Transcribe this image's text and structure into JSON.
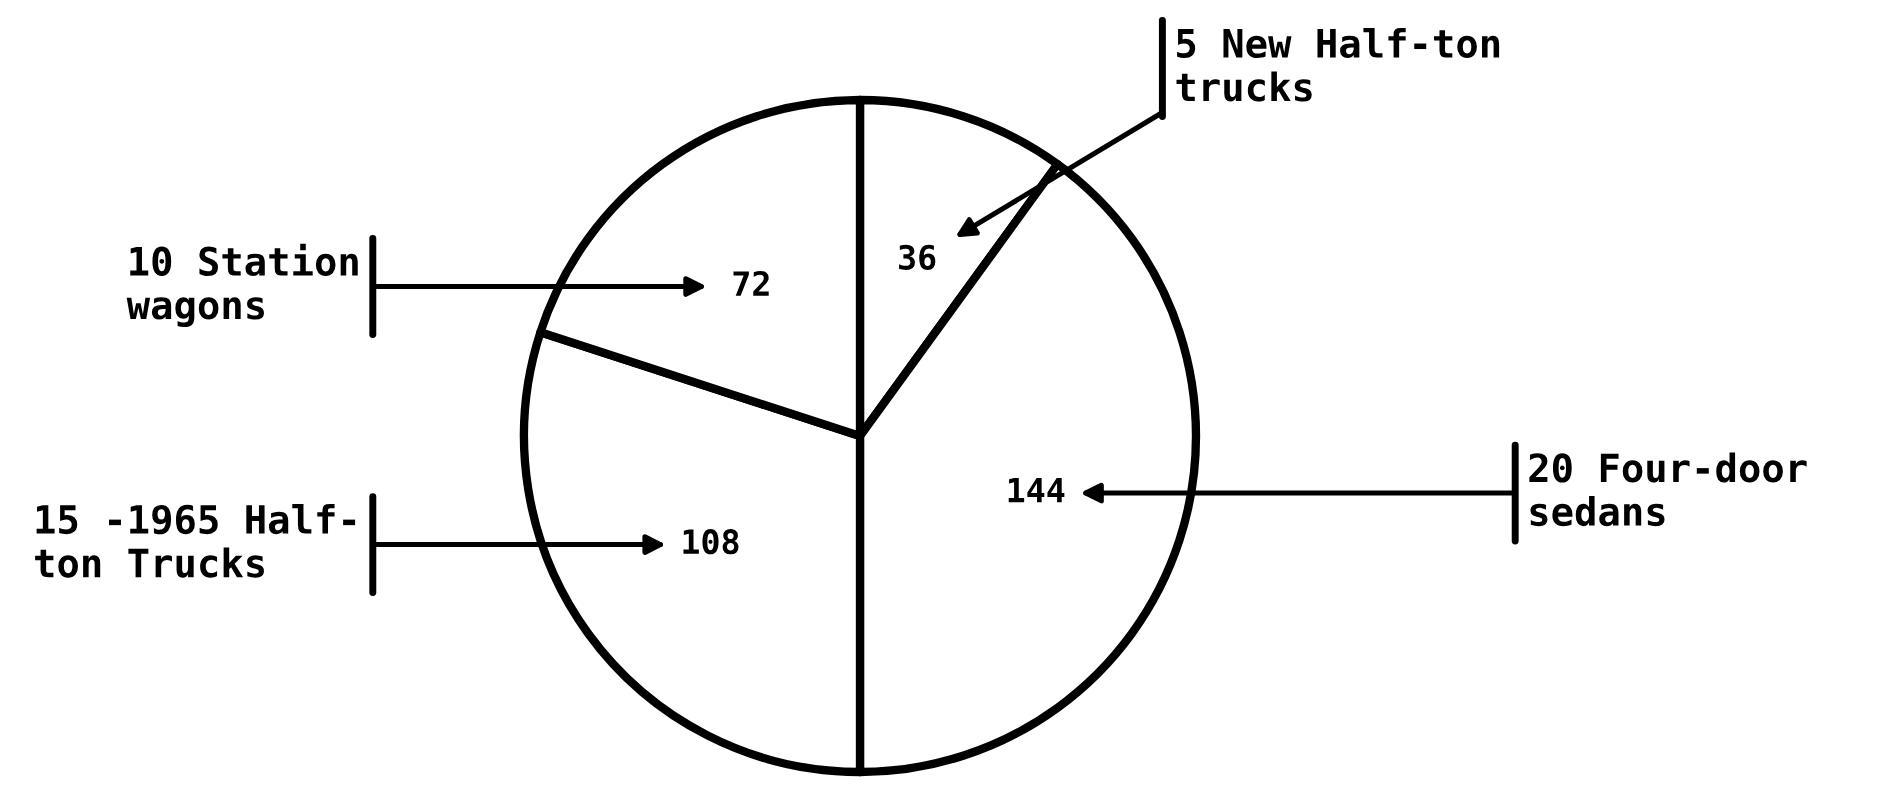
{
  "chart_data": {
    "type": "pie",
    "categories": [
      "5 New Half-ton\ntrucks",
      "20 Four-door\nsedans",
      "15 -1965 Half-\nton Trucks",
      "10 Station\nwagons"
    ],
    "values": [
      36,
      144,
      108,
      72
    ],
    "colors": [
      "#ffffff",
      "#ffffff",
      "#ffffff",
      "#ffffff"
    ],
    "data_labels": true
  }
}
